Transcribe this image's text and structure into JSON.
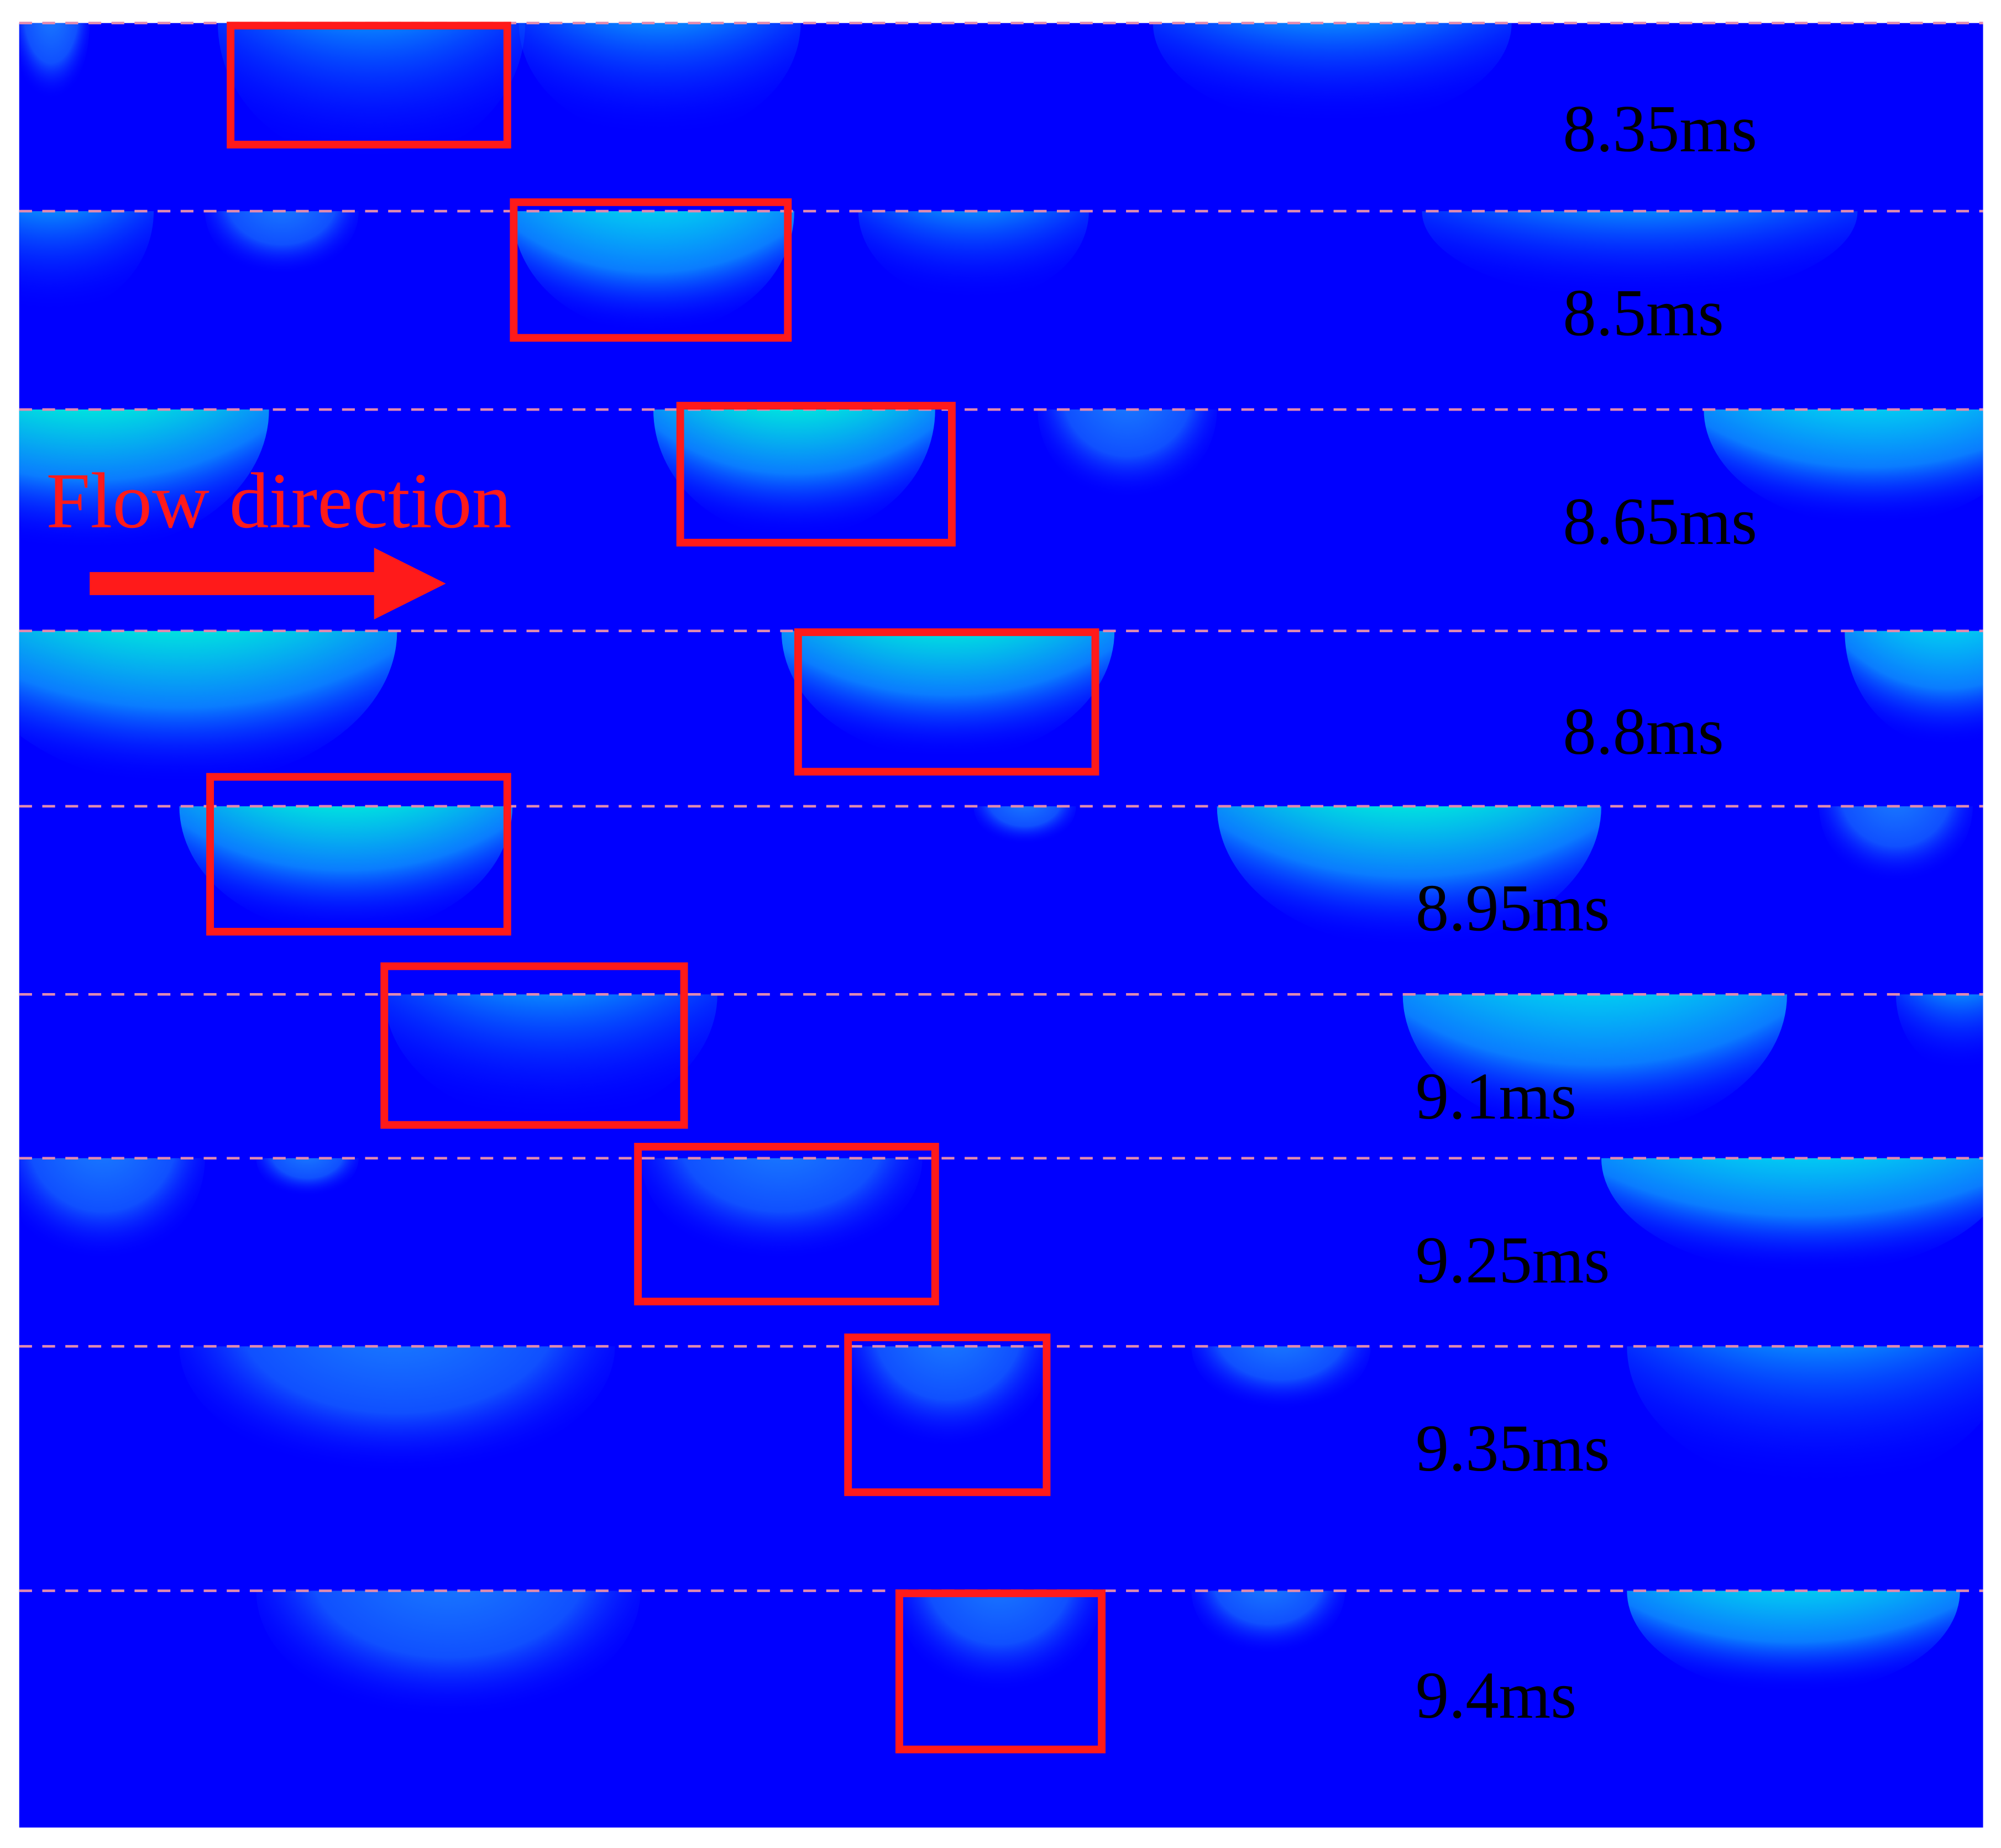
{
  "annotation": {
    "text": "Flow direction"
  },
  "frames": [
    "8.35ms",
    "8.5ms",
    "8.65ms",
    "8.8ms",
    "8.95ms",
    "9.1ms",
    "9.25ms",
    "9.35ms",
    "9.4ms"
  ]
}
